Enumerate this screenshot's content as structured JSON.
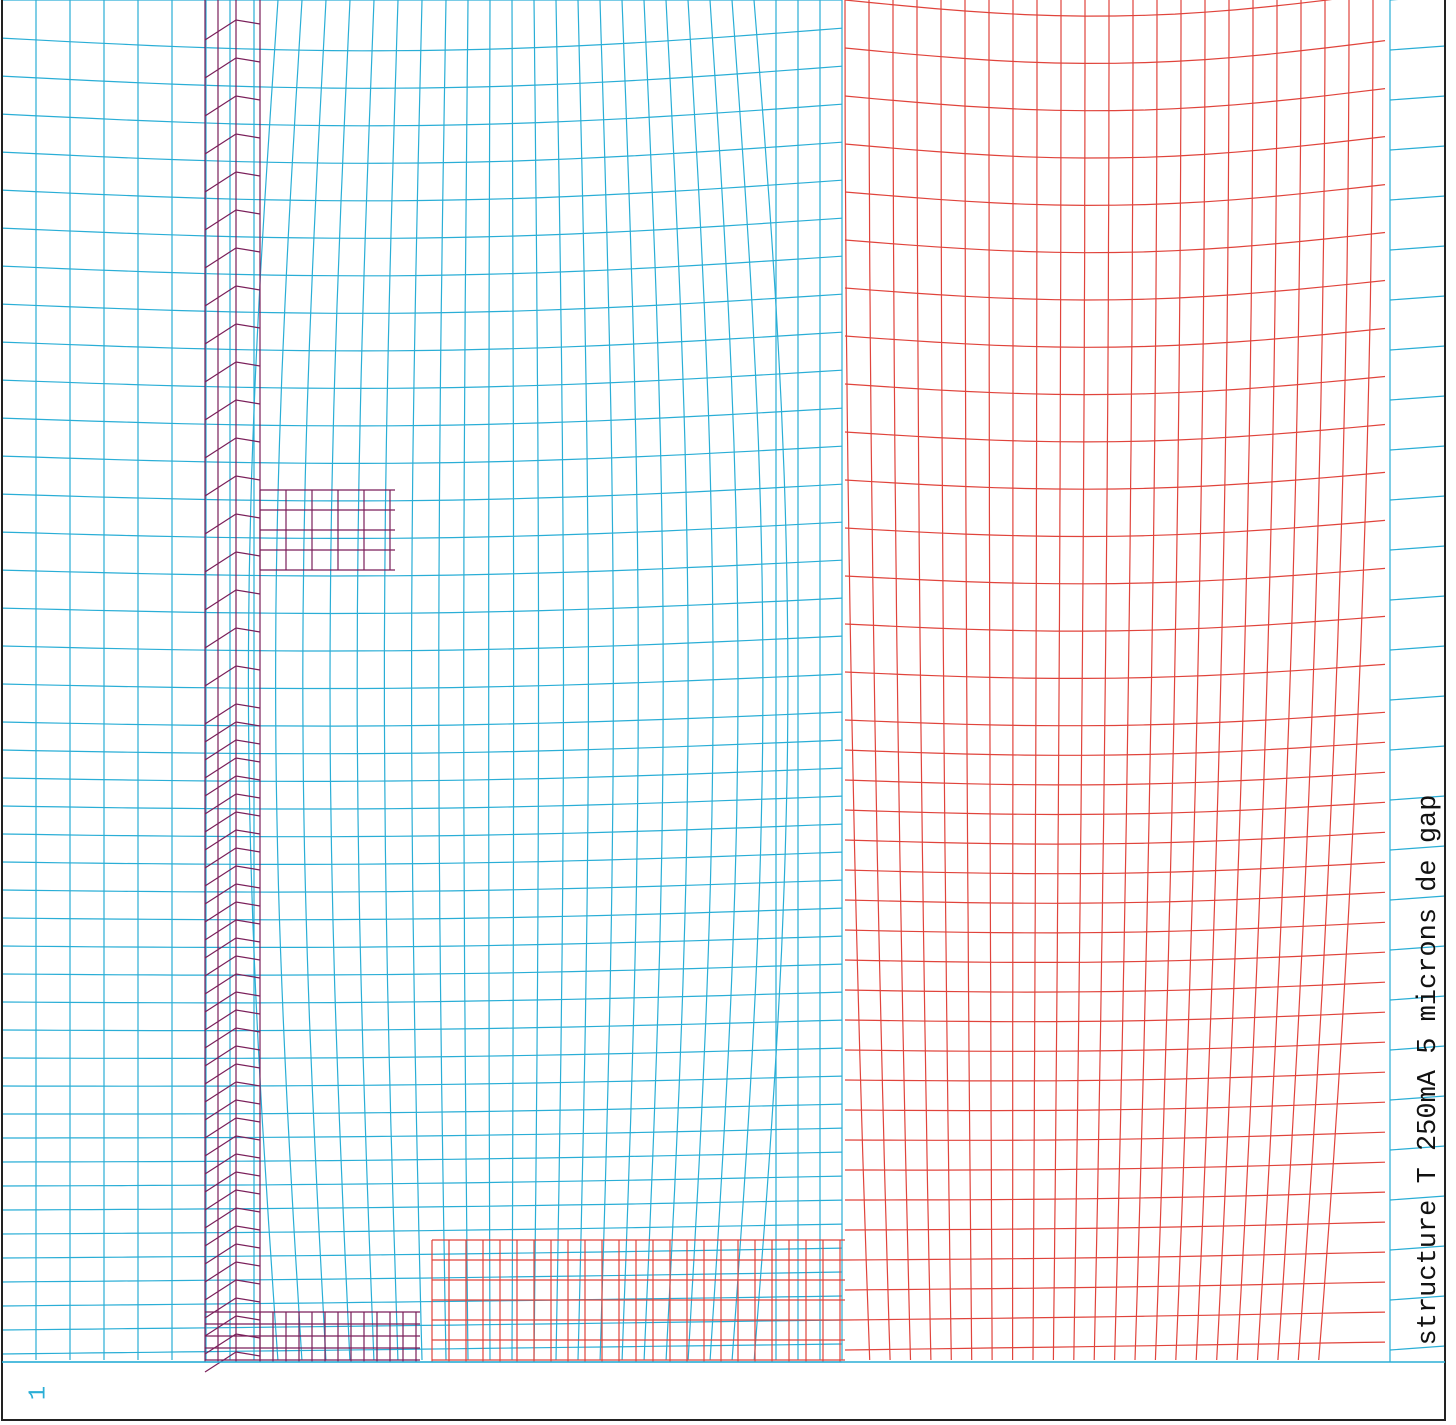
{
  "caption": "structure T 250mA 5 microns de gap",
  "frame_label": "1"
}
